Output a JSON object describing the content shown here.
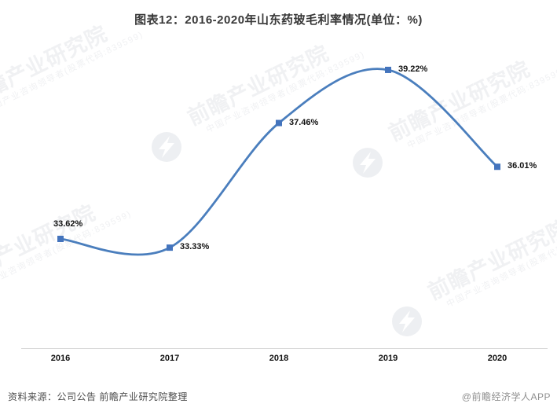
{
  "title": "图表12：2016-2020年山东药玻毛利率情况(单位：%)",
  "chart_data": {
    "type": "line",
    "title": "图表12：2016-2020年山东药玻毛利率情况(单位：%)",
    "categories": [
      "2016",
      "2017",
      "2018",
      "2019",
      "2020"
    ],
    "series": [
      {
        "name": "山东药玻毛利率",
        "values": [
          33.62,
          33.33,
          37.46,
          39.22,
          36.01
        ]
      }
    ],
    "point_labels": [
      "33.62%",
      "33.33%",
      "37.46%",
      "39.22%",
      "36.01%"
    ],
    "unit": "%",
    "ylim": [
      30,
      40
    ],
    "grid": false,
    "legend": false,
    "smooth": true,
    "line_color": "#4a7ebd",
    "marker_color": "#4474bd",
    "axis_color": "#d9d9d9"
  },
  "footer": {
    "source": "资料来源：公司公告 前瞻产业研究院整理",
    "credit": "@前瞻经济学人APP"
  },
  "watermark": {
    "text": "前瞻产业研究院",
    "subtext": "中国产业咨询领导者(股票代码:839599)",
    "logo_icon": "qianzhan-bolt-logo",
    "text_color": "#f0f1f3",
    "logo_color": "#edeff2"
  }
}
